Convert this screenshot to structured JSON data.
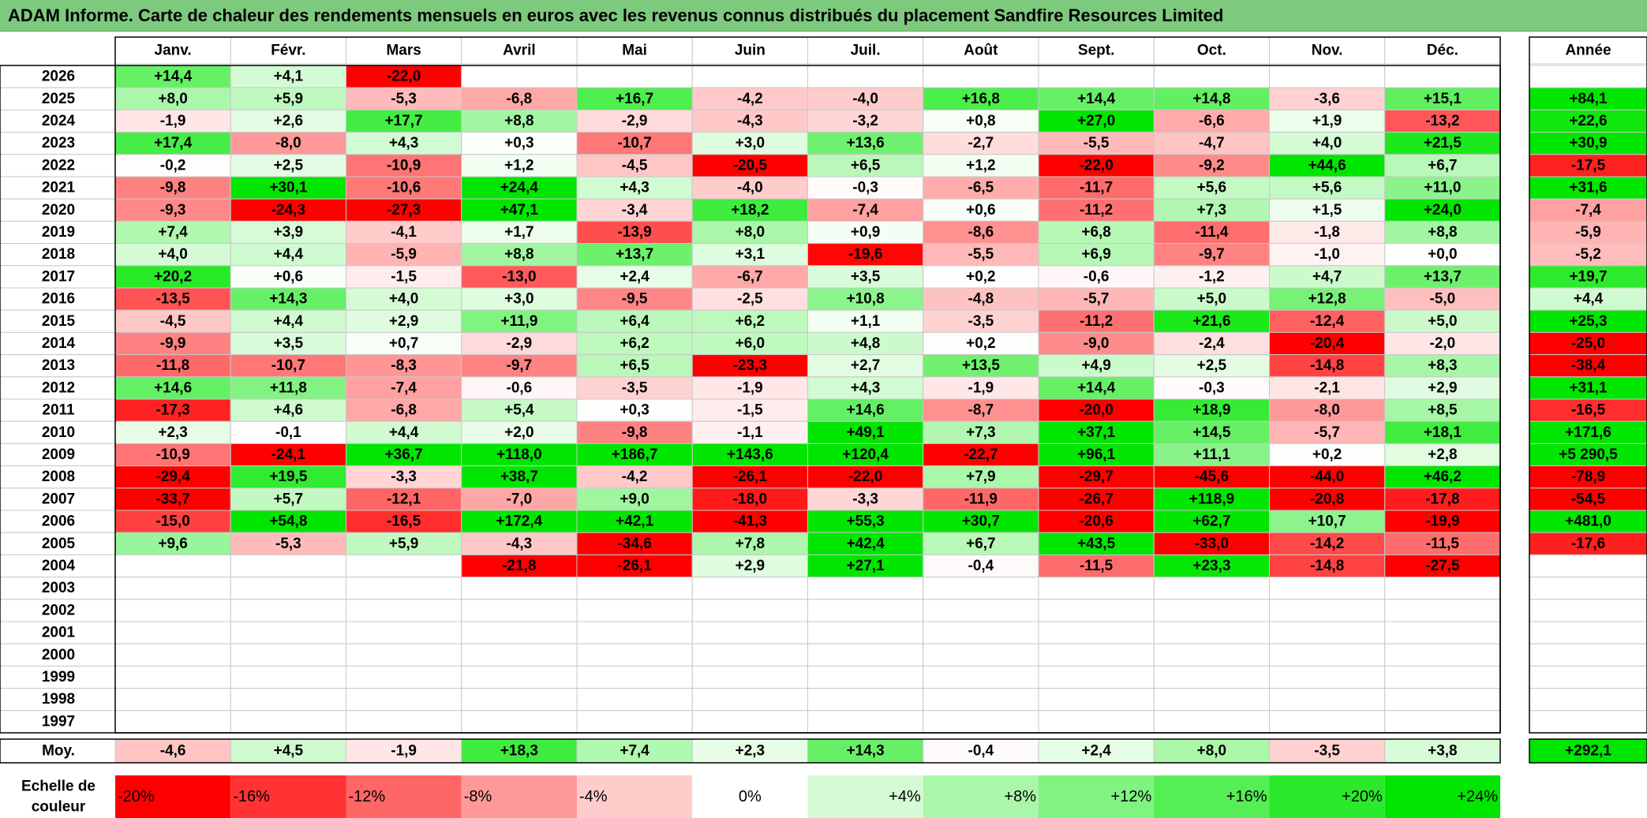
{
  "title": "ADAM Informe. Carte de chaleur des rendements mensuels en euros avec les revenus connus distribués du placement Sandfire Resources Limited",
  "chart_data": {
    "type": "heatmap",
    "months": [
      "Janv.",
      "Févr.",
      "Mars",
      "Avril",
      "Mai",
      "Juin",
      "Juil.",
      "Août",
      "Sept.",
      "Oct.",
      "Nov.",
      "Déc."
    ],
    "year_header": "Année",
    "years": [
      2026,
      2025,
      2024,
      2023,
      2022,
      2021,
      2020,
      2019,
      2018,
      2017,
      2016,
      2015,
      2014,
      2013,
      2012,
      2011,
      2010,
      2009,
      2008,
      2007,
      2006,
      2005,
      2004,
      2003,
      2002,
      2001,
      2000,
      1999,
      1998,
      1997
    ],
    "values": [
      [
        14.4,
        4.1,
        -22.0,
        null,
        null,
        null,
        null,
        null,
        null,
        null,
        null,
        null
      ],
      [
        8.0,
        5.9,
        -5.3,
        -6.8,
        16.7,
        -4.2,
        -4.0,
        16.8,
        14.4,
        14.8,
        -3.6,
        15.1
      ],
      [
        -1.9,
        2.6,
        17.7,
        8.8,
        -2.9,
        -4.3,
        -3.2,
        0.8,
        27.0,
        -6.6,
        1.9,
        -13.2
      ],
      [
        17.4,
        -8.0,
        4.3,
        0.3,
        -10.7,
        3.0,
        13.6,
        -2.7,
        -5.5,
        -4.7,
        4.0,
        21.5
      ],
      [
        -0.2,
        2.5,
        -10.9,
        1.2,
        -4.5,
        -20.5,
        6.5,
        1.2,
        -22.0,
        -9.2,
        44.6,
        6.7
      ],
      [
        -9.8,
        30.1,
        -10.6,
        24.4,
        4.3,
        -4.0,
        -0.3,
        -6.5,
        -11.7,
        5.6,
        5.6,
        11.0
      ],
      [
        -9.3,
        -24.3,
        -27.3,
        47.1,
        -3.4,
        18.2,
        -7.4,
        0.6,
        -11.2,
        7.3,
        1.5,
        24.0
      ],
      [
        7.4,
        3.9,
        -4.1,
        1.7,
        -13.9,
        8.0,
        0.9,
        -8.6,
        6.8,
        -11.4,
        -1.8,
        8.8
      ],
      [
        4.0,
        4.4,
        -5.9,
        8.8,
        13.7,
        3.1,
        -19.6,
        -5.5,
        6.9,
        -9.7,
        -1.0,
        0.0
      ],
      [
        20.2,
        0.6,
        -1.5,
        -13.0,
        2.4,
        -6.7,
        3.5,
        0.2,
        -0.6,
        -1.2,
        4.7,
        13.7
      ],
      [
        -13.5,
        14.3,
        4.0,
        3.0,
        -9.5,
        -2.5,
        10.8,
        -4.8,
        -5.7,
        5.0,
        12.8,
        -5.0
      ],
      [
        -4.5,
        4.4,
        2.9,
        11.9,
        6.4,
        6.2,
        1.1,
        -3.5,
        -11.2,
        21.6,
        -12.4,
        5.0
      ],
      [
        -9.9,
        3.5,
        0.7,
        -2.9,
        6.2,
        6.0,
        4.8,
        0.2,
        -9.0,
        -2.4,
        -20.4,
        -2.0
      ],
      [
        -11.8,
        -10.7,
        -8.3,
        -9.7,
        6.5,
        -23.3,
        2.7,
        13.5,
        4.9,
        2.5,
        -14.8,
        8.3
      ],
      [
        14.6,
        11.8,
        -7.4,
        -0.6,
        -3.5,
        -1.9,
        4.3,
        -1.9,
        14.4,
        -0.3,
        -2.1,
        2.9
      ],
      [
        -17.3,
        4.6,
        -6.8,
        5.4,
        0.3,
        -1.5,
        14.6,
        -8.7,
        -20.0,
        18.9,
        -8.0,
        8.5
      ],
      [
        2.3,
        -0.1,
        4.4,
        2.0,
        -9.8,
        -1.1,
        49.1,
        7.3,
        37.1,
        14.5,
        -5.7,
        18.1
      ],
      [
        -10.9,
        -24.1,
        36.7,
        118.0,
        186.7,
        143.6,
        120.4,
        -22.7,
        96.1,
        11.1,
        0.2,
        2.8
      ],
      [
        -29.4,
        19.5,
        -3.3,
        38.7,
        -4.2,
        -26.1,
        -22.0,
        7.9,
        -29.7,
        -45.6,
        -44.0,
        46.2
      ],
      [
        -33.7,
        5.7,
        -12.1,
        -7.0,
        9.0,
        -18.0,
        -3.3,
        -11.9,
        -26.7,
        118.9,
        -20.8,
        -17.8
      ],
      [
        -15.0,
        54.8,
        -16.5,
        172.4,
        42.1,
        -41.3,
        55.3,
        30.7,
        -20.6,
        62.7,
        10.7,
        -19.9
      ],
      [
        9.6,
        -5.3,
        5.9,
        -4.3,
        -34.6,
        7.8,
        42.4,
        6.7,
        43.5,
        -33.0,
        -14.2,
        -11.5
      ],
      [
        null,
        null,
        null,
        -21.8,
        -26.1,
        2.9,
        27.1,
        -0.4,
        -11.5,
        23.3,
        -14.8,
        -27.5
      ],
      [
        null,
        null,
        null,
        null,
        null,
        null,
        null,
        null,
        null,
        null,
        null,
        null
      ],
      [
        null,
        null,
        null,
        null,
        null,
        null,
        null,
        null,
        null,
        null,
        null,
        null
      ],
      [
        null,
        null,
        null,
        null,
        null,
        null,
        null,
        null,
        null,
        null,
        null,
        null
      ],
      [
        null,
        null,
        null,
        null,
        null,
        null,
        null,
        null,
        null,
        null,
        null,
        null
      ],
      [
        null,
        null,
        null,
        null,
        null,
        null,
        null,
        null,
        null,
        null,
        null,
        null
      ],
      [
        null,
        null,
        null,
        null,
        null,
        null,
        null,
        null,
        null,
        null,
        null,
        null
      ],
      [
        null,
        null,
        null,
        null,
        null,
        null,
        null,
        null,
        null,
        null,
        null,
        null
      ]
    ],
    "annual": [
      null,
      84.1,
      22.6,
      30.9,
      -17.5,
      31.6,
      -7.4,
      -5.9,
      -5.2,
      19.7,
      4.4,
      25.3,
      -25.0,
      -38.4,
      31.1,
      -16.5,
      171.6,
      5290.5,
      -78.9,
      -54.5,
      481.0,
      -17.6,
      null,
      null,
      null,
      null,
      null,
      null,
      null,
      null
    ],
    "average_label": "Moy.",
    "averages": [
      -4.6,
      4.5,
      -1.9,
      18.3,
      7.4,
      2.3,
      14.3,
      -0.4,
      2.4,
      8.0,
      -3.5,
      3.8
    ],
    "average_annual": 292.1,
    "scale_label": [
      "Echelle de",
      "couleur"
    ],
    "scale": [
      {
        "label": "-20%",
        "value": -20,
        "align": "left"
      },
      {
        "label": "-16%",
        "value": -16,
        "align": "left"
      },
      {
        "label": "-12%",
        "value": -12,
        "align": "left"
      },
      {
        "label": "-8%",
        "value": -8,
        "align": "left"
      },
      {
        "label": "-4%",
        "value": -4,
        "align": "left"
      },
      {
        "label": "0%",
        "value": 0,
        "align": "center"
      },
      {
        "label": "+4%",
        "value": 4,
        "align": "right"
      },
      {
        "label": "+8%",
        "value": 8,
        "align": "right"
      },
      {
        "label": "+12%",
        "value": 12,
        "align": "right"
      },
      {
        "label": "+16%",
        "value": 16,
        "align": "right"
      },
      {
        "label": "+20%",
        "value": 20,
        "align": "right"
      },
      {
        "label": "+24%",
        "value": 24,
        "align": "right"
      }
    ],
    "colors": {
      "negative_max": "#ff0000",
      "positive_max": "#00e600",
      "neutral": "#ffffff",
      "title_bar": "#7dc97d",
      "grid": "#c8c8c8",
      "border": "#000000"
    }
  }
}
